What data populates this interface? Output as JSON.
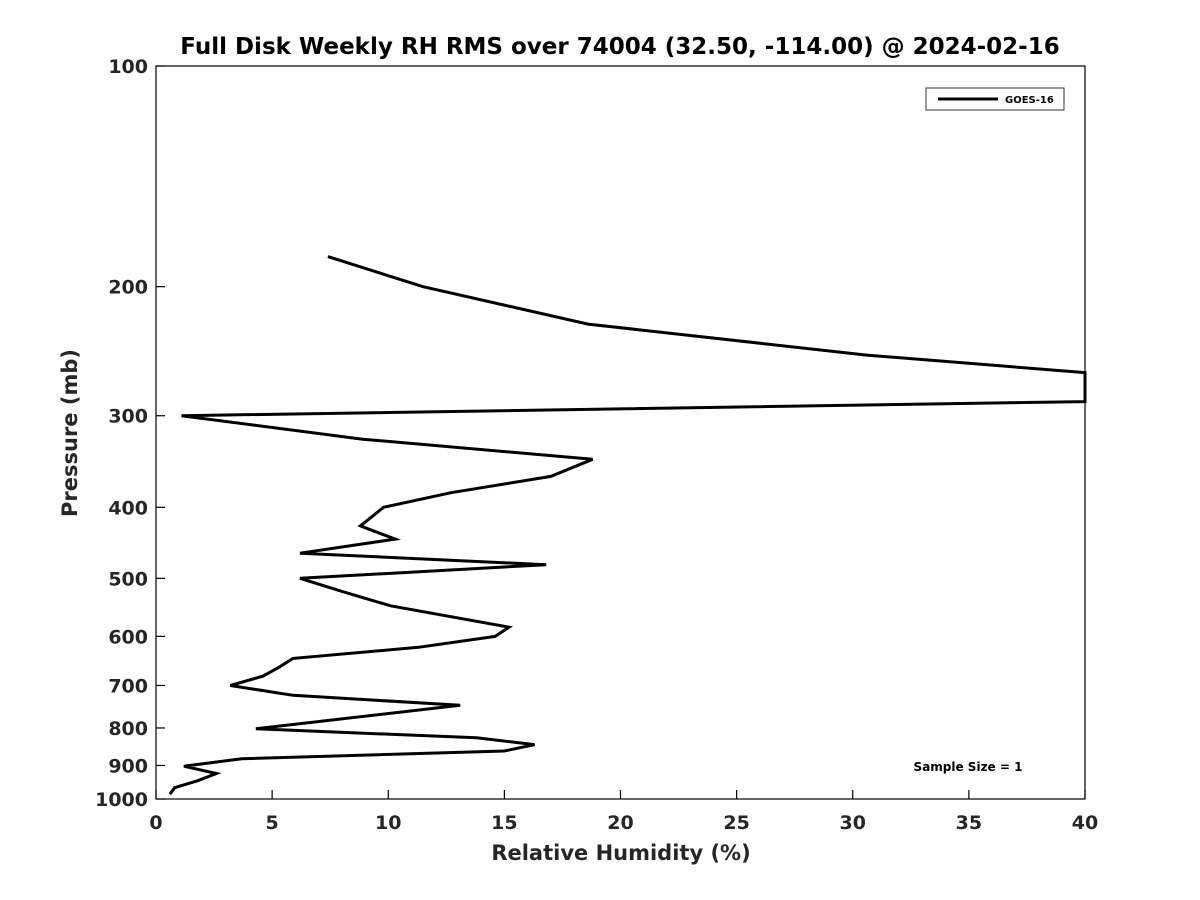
{
  "chart_data": {
    "type": "line",
    "title": "Full Disk Weekly RH RMS over 74004 (32.50, -114.00) @ 2024-02-16",
    "xlabel": "Relative Humidity (%)",
    "ylabel": "Pressure (mb)",
    "xlim": [
      0,
      40
    ],
    "ylim": [
      100,
      1000
    ],
    "y_scale": "log",
    "y_reversed": true,
    "grid": false,
    "legend_position": "top-right",
    "x_ticks": [
      "0",
      "5",
      "10",
      "15",
      "20",
      "25",
      "30",
      "35",
      "40"
    ],
    "y_ticks": [
      "100",
      "200",
      "300",
      "400",
      "500",
      "600",
      "700",
      "800",
      "900",
      "1000"
    ],
    "annotation": "Sample Size = 1",
    "series": [
      {
        "name": "GOES-16",
        "color": "#000000",
        "points": [
          {
            "x": 7.4,
            "y": 182
          },
          {
            "x": 11.5,
            "y": 200
          },
          {
            "x": 18.6,
            "y": 225
          },
          {
            "x": 30.6,
            "y": 248
          },
          {
            "x": 40.0,
            "y": 262
          },
          {
            "x": 40.0,
            "y": 287
          },
          {
            "x": 1.1,
            "y": 300
          },
          {
            "x": 8.9,
            "y": 323
          },
          {
            "x": 18.8,
            "y": 344
          },
          {
            "x": 17.0,
            "y": 363
          },
          {
            "x": 12.7,
            "y": 382
          },
          {
            "x": 9.8,
            "y": 400
          },
          {
            "x": 8.8,
            "y": 424
          },
          {
            "x": 10.3,
            "y": 442
          },
          {
            "x": 6.2,
            "y": 462
          },
          {
            "x": 16.8,
            "y": 479
          },
          {
            "x": 6.2,
            "y": 500
          },
          {
            "x": 8.1,
            "y": 522
          },
          {
            "x": 10.1,
            "y": 545
          },
          {
            "x": 15.2,
            "y": 583
          },
          {
            "x": 14.6,
            "y": 600
          },
          {
            "x": 11.3,
            "y": 621
          },
          {
            "x": 5.9,
            "y": 643
          },
          {
            "x": 5.3,
            "y": 661
          },
          {
            "x": 4.6,
            "y": 680
          },
          {
            "x": 3.2,
            "y": 700
          },
          {
            "x": 5.9,
            "y": 722
          },
          {
            "x": 13.1,
            "y": 745
          },
          {
            "x": 4.3,
            "y": 802
          },
          {
            "x": 13.8,
            "y": 825
          },
          {
            "x": 16.3,
            "y": 843
          },
          {
            "x": 15.0,
            "y": 860
          },
          {
            "x": 3.7,
            "y": 881
          },
          {
            "x": 1.2,
            "y": 902
          },
          {
            "x": 2.6,
            "y": 923
          },
          {
            "x": 1.8,
            "y": 944
          },
          {
            "x": 0.8,
            "y": 965
          },
          {
            "x": 0.6,
            "y": 985
          }
        ]
      }
    ]
  }
}
